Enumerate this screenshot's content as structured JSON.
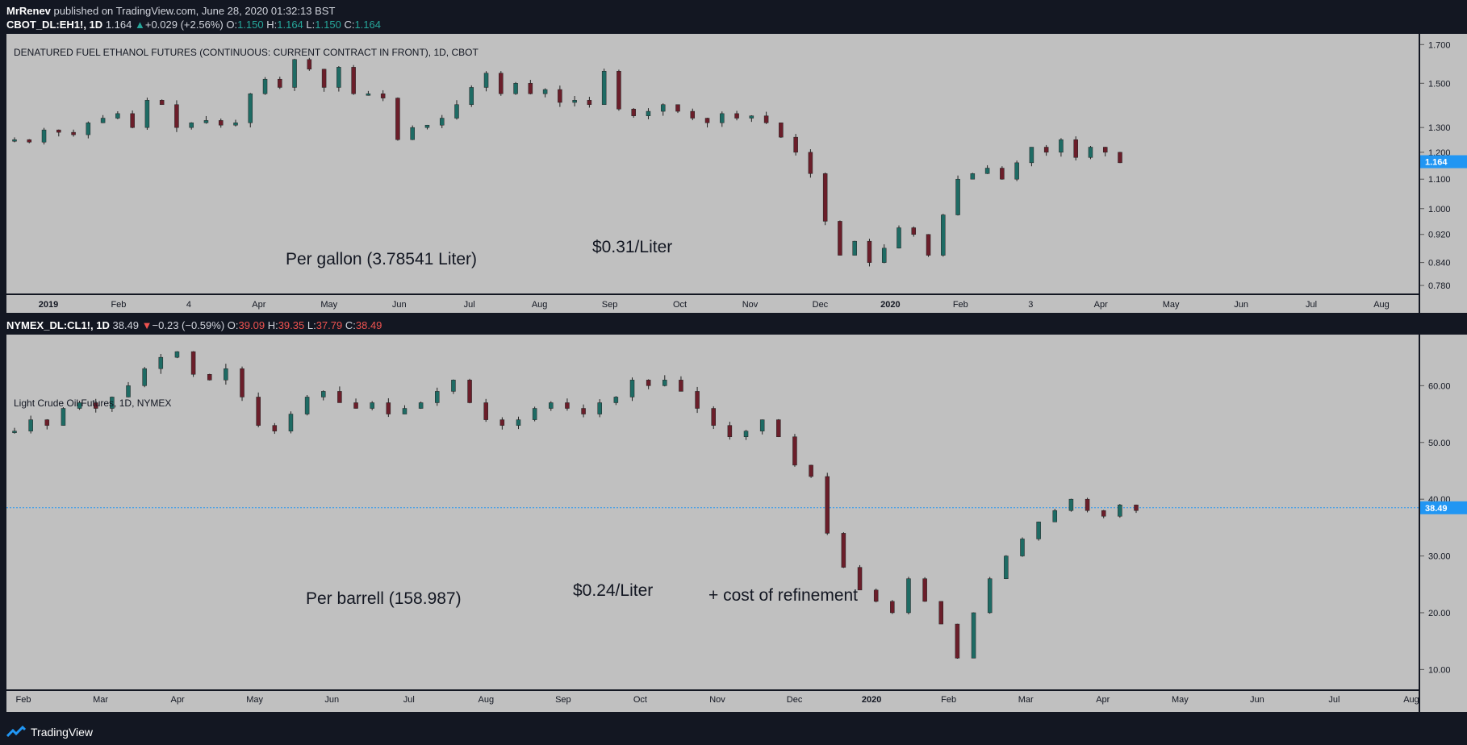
{
  "header": {
    "author": "MrRenev",
    "published": "published on TradingView.com, June 28, 2020 01:32:13 BST"
  },
  "top": {
    "symbol": "CBOT_DL:EH1!, 1D",
    "last": "1.164",
    "change": "+0.029 (+2.56%)",
    "o": "1.150",
    "h": "1.164",
    "l": "1.150",
    "c": "1.164",
    "title": "DENATURED FUEL ETHANOL FUTURES (CONTINUOUS: CURRENT CONTRACT IN FRONT), 1D, CBOT",
    "note1": "Per gallon (3.78541 Liter)",
    "note2": "$0.31/Liter",
    "price_tag": "1.164"
  },
  "bottom": {
    "symbol": "NYMEX_DL:CL1!, 1D",
    "last": "38.49",
    "change": "−0.23 (−0.59%)",
    "o": "39.09",
    "h": "39.35",
    "l": "37.79",
    "c": "38.49",
    "title": "Light Crude Oil Futures, 1D, NYMEX",
    "note1": "Per barrell (158.987)",
    "note2": "$0.24/Liter",
    "note3": "+ cost of refinement",
    "price_tag": "38.49"
  },
  "footer": {
    "brand": "TradingView"
  },
  "chart_data": [
    {
      "type": "candlestick",
      "title": "DENATURED FUEL ETHANOL FUTURES (CONTINUOUS: CURRENT CONTRACT IN FRONT), 1D, CBOT",
      "y_ticks": [
        "1.700",
        "1.500",
        "1.300",
        "1.200",
        "1.100",
        "1.000",
        "0.920",
        "0.840",
        "0.780"
      ],
      "x_ticks": [
        "2019",
        "Feb",
        "4",
        "Apr",
        "May",
        "Jun",
        "Jul",
        "Aug",
        "Sep",
        "Oct",
        "Nov",
        "Dec",
        "2020",
        "Feb",
        "3",
        "Apr",
        "May",
        "Jun",
        "Jul",
        "Aug"
      ],
      "scale": "log",
      "ylim": [
        0.76,
        1.76
      ],
      "last": 1.164,
      "series": [
        {
          "values": [
            1.25,
            1.24,
            1.29,
            1.28,
            1.27,
            1.32,
            1.34,
            1.36,
            1.3,
            1.42,
            1.4,
            1.3,
            1.32,
            1.33,
            1.31,
            1.32,
            1.45,
            1.52,
            1.48,
            1.62,
            1.57,
            1.48,
            1.58,
            1.45,
            1.45,
            1.43,
            1.25,
            1.3,
            1.31,
            1.34,
            1.4,
            1.48,
            1.55,
            1.45,
            1.5,
            1.45,
            1.47,
            1.41,
            1.42,
            1.4,
            1.56,
            1.38,
            1.35,
            1.37,
            1.4,
            1.37,
            1.34,
            1.32,
            1.36,
            1.34,
            1.35,
            1.32,
            1.26,
            1.2,
            1.12,
            0.96,
            0.86,
            0.9,
            0.84,
            0.88,
            0.94,
            0.92,
            0.86,
            0.98,
            1.1,
            1.12,
            1.14,
            1.1,
            1.16,
            1.22,
            1.2,
            1.25,
            1.18,
            1.22,
            1.2,
            1.16
          ]
        }
      ]
    },
    {
      "type": "candlestick",
      "title": "Light Crude Oil Futures, 1D, NYMEX",
      "y_ticks": [
        "60.00",
        "50.00",
        "40.00",
        "30.00",
        "20.00",
        "10.00"
      ],
      "x_ticks": [
        "Feb",
        "Mar",
        "Apr",
        "May",
        "Jun",
        "Jul",
        "Aug",
        "Sep",
        "Oct",
        "Nov",
        "Dec",
        "2020",
        "Feb",
        "Mar",
        "Apr",
        "May",
        "Jun",
        "Jul",
        "Aug"
      ],
      "ylim": [
        6.5,
        69
      ],
      "last": 38.49,
      "series": [
        {
          "values": [
            52,
            54,
            53,
            56,
            57,
            56,
            58,
            60,
            63,
            65,
            66,
            62,
            61,
            63,
            58,
            53,
            52,
            55,
            58,
            59,
            57,
            56,
            57,
            55,
            56,
            57,
            59,
            61,
            57,
            54,
            53,
            54,
            56,
            57,
            56,
            55,
            57,
            58,
            61,
            60,
            61,
            59,
            56,
            53,
            51,
            52,
            54,
            51,
            46,
            44,
            34,
            28,
            24,
            22,
            20,
            26,
            22,
            18,
            12,
            20,
            26,
            30,
            33,
            36,
            38,
            40,
            38,
            37,
            39,
            38
          ]
        }
      ]
    }
  ]
}
